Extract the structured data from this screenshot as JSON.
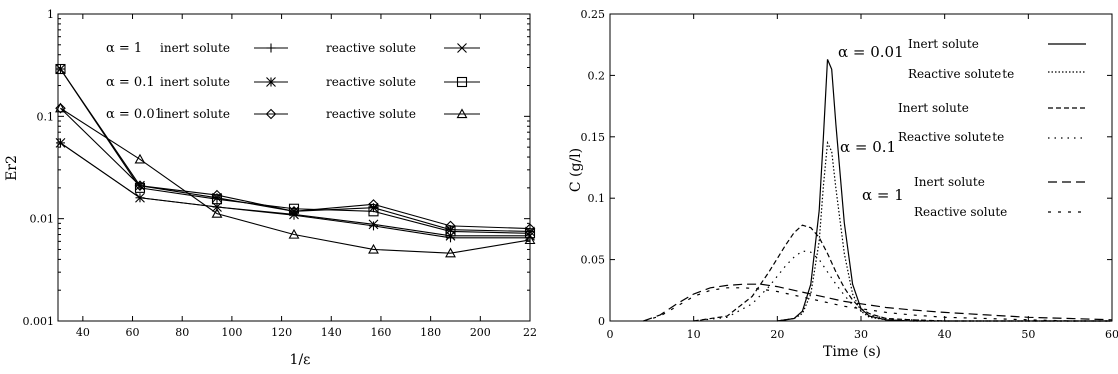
{
  "chart_data": [
    {
      "type": "line",
      "xlabel": "1/ε",
      "ylabel": "Er2",
      "y_scale": "log",
      "ylim": [
        0.001,
        1
      ],
      "xlim": [
        30,
        220
      ],
      "x_ticks": [
        "40",
        "60",
        "80",
        "100",
        "120",
        "140",
        "160",
        "180",
        "200",
        "22"
      ],
      "y_ticks": [
        "0.001",
        "0.01",
        "0.1",
        "1"
      ],
      "grid": false,
      "legend_position": "top",
      "series": [
        {
          "name": "inert solute",
          "alpha_label": "α = 1",
          "marker": "plus",
          "x": [
            31,
            63,
            94,
            125,
            157,
            188,
            220
          ],
          "y": [
            0.055,
            0.016,
            0.013,
            0.0108,
            0.0085,
            0.0065,
            0.0065
          ]
        },
        {
          "name": "reactive solute",
          "alpha_label": "",
          "marker": "x",
          "x": [
            31,
            63,
            94,
            125,
            157,
            188,
            220
          ],
          "y": [
            0.055,
            0.016,
            0.013,
            0.011,
            0.0088,
            0.0068,
            0.0068
          ]
        },
        {
          "name": "inert solute",
          "alpha_label": "α = 0.1",
          "marker": "asterisk",
          "x": [
            31,
            63,
            94,
            125,
            157,
            188,
            220
          ],
          "y": [
            0.29,
            0.021,
            0.016,
            0.0118,
            0.0128,
            0.0078,
            0.0075
          ]
        },
        {
          "name": "reactive solute",
          "alpha_label": "",
          "marker": "square",
          "x": [
            31,
            63,
            94,
            125,
            157,
            188,
            220
          ],
          "y": [
            0.29,
            0.02,
            0.0155,
            0.0125,
            0.0118,
            0.0075,
            0.0072
          ]
        },
        {
          "name": "inert solute",
          "alpha_label": "α = 0.01",
          "marker": "diamond",
          "x": [
            31,
            63,
            94,
            125,
            157,
            188,
            220
          ],
          "y": [
            0.12,
            0.021,
            0.017,
            0.0118,
            0.0138,
            0.0085,
            0.008
          ]
        },
        {
          "name": "reactive solute",
          "alpha_label": "",
          "marker": "triangle",
          "x": [
            31,
            63,
            94,
            125,
            157,
            188,
            220
          ],
          "y": [
            0.12,
            0.038,
            0.0112,
            0.007,
            0.005,
            0.0046,
            0.0062
          ]
        }
      ]
    },
    {
      "type": "line",
      "xlabel": "Time (s)",
      "ylabel": "C (g/l)",
      "xlim": [
        0,
        60
      ],
      "ylim": [
        0,
        0.25
      ],
      "x_ticks": [
        "0",
        "10",
        "20",
        "30",
        "40",
        "50",
        "60"
      ],
      "y_ticks": [
        "0",
        "0.05",
        "0.1",
        "0.15",
        "0.2",
        "0.25"
      ],
      "grid": false,
      "legend_position": "top-right",
      "series": [
        {
          "name": "Inert solute",
          "alpha_label": "α = 0.01",
          "line": "solid",
          "x": [
            20,
            22,
            23,
            24,
            25,
            25.5,
            26,
            26.5,
            27,
            28,
            29,
            30,
            31,
            33,
            36,
            40,
            60
          ],
          "y": [
            0,
            0.002,
            0.008,
            0.03,
            0.09,
            0.15,
            0.213,
            0.205,
            0.16,
            0.08,
            0.03,
            0.01,
            0.004,
            0.001,
            0,
            0,
            0
          ]
        },
        {
          "name": "Reactive solute",
          "suffix": "te",
          "alpha_label": "",
          "line": "dotted",
          "x": [
            20,
            22,
            23,
            24,
            25,
            25.5,
            26,
            26.5,
            27,
            28,
            29,
            30,
            31,
            33,
            36,
            40,
            60
          ],
          "y": [
            0,
            0.002,
            0.006,
            0.022,
            0.065,
            0.11,
            0.145,
            0.138,
            0.108,
            0.055,
            0.022,
            0.008,
            0.003,
            0.001,
            0,
            0,
            0
          ]
        },
        {
          "name": "Inert solute",
          "alpha_label": "α = 0.1",
          "line": "dashed",
          "x": [
            10,
            14,
            17,
            19,
            21,
            22,
            23,
            24,
            25,
            26,
            27,
            28,
            29,
            30,
            31,
            33,
            36,
            40,
            60
          ],
          "y": [
            0,
            0.004,
            0.02,
            0.04,
            0.062,
            0.072,
            0.078,
            0.076,
            0.068,
            0.055,
            0.04,
            0.027,
            0.017,
            0.01,
            0.006,
            0.002,
            0.001,
            0,
            0
          ]
        },
        {
          "name": "Reactive solute",
          "suffix": "te",
          "alpha_label": "",
          "line": "sparse-dotted",
          "x": [
            10,
            14,
            17,
            19,
            21,
            22,
            23,
            24,
            25,
            26,
            27,
            28,
            29,
            30,
            31,
            33,
            36,
            40,
            60
          ],
          "y": [
            0,
            0.003,
            0.014,
            0.028,
            0.045,
            0.052,
            0.057,
            0.056,
            0.05,
            0.04,
            0.03,
            0.021,
            0.013,
            0.008,
            0.005,
            0.002,
            0.001,
            0,
            0
          ]
        },
        {
          "name": "Inert solute",
          "alpha_label": "α = 1",
          "line": "long-dashed",
          "x": [
            4,
            6,
            8,
            10,
            12,
            14,
            16,
            18,
            20,
            22,
            24,
            26,
            28,
            30,
            33,
            36,
            40,
            45,
            50,
            55,
            60
          ],
          "y": [
            0,
            0.005,
            0.014,
            0.022,
            0.027,
            0.029,
            0.03,
            0.03,
            0.028,
            0.025,
            0.022,
            0.019,
            0.016,
            0.014,
            0.011,
            0.009,
            0.007,
            0.005,
            0.003,
            0.002,
            0.001
          ]
        },
        {
          "name": "Reactive solute",
          "alpha_label": "",
          "line": "sparse-dashed",
          "x": [
            4,
            6,
            8,
            10,
            12,
            14,
            16,
            18,
            20,
            22,
            24,
            26,
            28,
            30,
            33,
            36,
            40,
            45,
            50,
            55,
            60
          ],
          "y": [
            0,
            0.004,
            0.012,
            0.02,
            0.025,
            0.027,
            0.027,
            0.026,
            0.024,
            0.021,
            0.018,
            0.015,
            0.012,
            0.01,
            0.007,
            0.005,
            0.003,
            0.002,
            0.001,
            0,
            0
          ]
        }
      ]
    }
  ]
}
